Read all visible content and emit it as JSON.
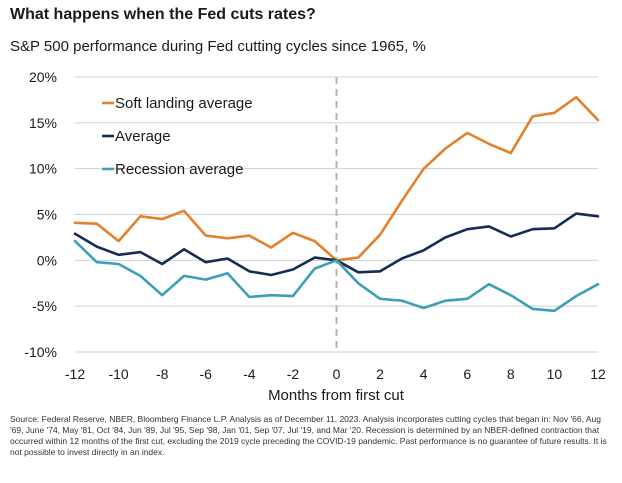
{
  "title": "What happens when the Fed cuts rates?",
  "subtitle": "S&P 500 performance during Fed cutting cycles since 1965, %",
  "source": "Source: Federal Reserve, NBER, Bloomberg Finance L.P. Analysis as of December 11, 2023. Analysis incorporates cutting cycles that began in: Nov '66, Aug '69, June '74, May '81, Oct '84, Jun '89, Jul '95, Sep '98, Jan '01, Sep '07, Jul '19, and Mar '20. Recession is determined by an NBER-defined contraction that occurred within 12 months of the first cut, excluding the 2019 cycle preceding the COVID-19 pandemic. Past performance is no guarantee of future results. It is not possible to invest directly in an index.",
  "chart_data": {
    "type": "line",
    "title": "What happens when the Fed cuts rates?",
    "subtitle": "S&P 500 performance during Fed cutting cycles since 1965, %",
    "xlabel": "Months from first cut",
    "ylabel": "",
    "xlim": [
      -12,
      12
    ],
    "ylim": [
      -10,
      20
    ],
    "xticks": [
      -12,
      -10,
      -8,
      -6,
      -4,
      -2,
      0,
      2,
      4,
      6,
      8,
      10,
      12
    ],
    "xtick_labels": [
      "-12",
      "-10",
      "-8",
      "-6",
      "-4",
      "-2",
      "0",
      "2",
      "4",
      "6",
      "8",
      "10",
      "12"
    ],
    "yticks": [
      -10,
      -5,
      0,
      5,
      10,
      15,
      20
    ],
    "ytick_labels": [
      "-10%",
      "-5%",
      "0%",
      "5%",
      "10%",
      "15%",
      "20%"
    ],
    "grid": "horizontal",
    "vline_at": 0,
    "legend_position": "top-left",
    "x": [
      -12,
      -11,
      -10,
      -9,
      -8,
      -7,
      -6,
      -5,
      -4,
      -3,
      -2,
      -1,
      0,
      1,
      2,
      3,
      4,
      5,
      6,
      7,
      8,
      9,
      10,
      11,
      12
    ],
    "series": [
      {
        "name": "Soft landing average",
        "color": "#e2802c",
        "values": [
          4.1,
          4.0,
          2.1,
          4.8,
          4.5,
          5.4,
          2.7,
          2.4,
          2.7,
          1.4,
          3.0,
          2.1,
          0.0,
          0.3,
          2.8,
          6.5,
          10.0,
          12.2,
          13.9,
          12.7,
          11.7,
          15.7,
          16.1,
          17.8,
          15.3
        ]
      },
      {
        "name": "Average",
        "color": "#152d52",
        "values": [
          2.9,
          1.5,
          0.6,
          0.9,
          -0.4,
          1.2,
          -0.2,
          0.2,
          -1.2,
          -1.6,
          -1.0,
          0.3,
          0.0,
          -1.3,
          -1.2,
          0.2,
          1.1,
          2.5,
          3.4,
          3.7,
          2.6,
          3.4,
          3.5,
          5.1,
          4.8
        ]
      },
      {
        "name": "Recession average",
        "color": "#3d9fb5",
        "values": [
          2.1,
          -0.2,
          -0.4,
          -1.7,
          -3.8,
          -1.7,
          -2.1,
          -1.4,
          -4.0,
          -3.8,
          -3.9,
          -0.9,
          0.0,
          -2.5,
          -4.2,
          -4.4,
          -5.2,
          -4.4,
          -4.2,
          -2.6,
          -3.8,
          -5.3,
          -5.5,
          -3.9,
          -2.6
        ]
      }
    ]
  }
}
